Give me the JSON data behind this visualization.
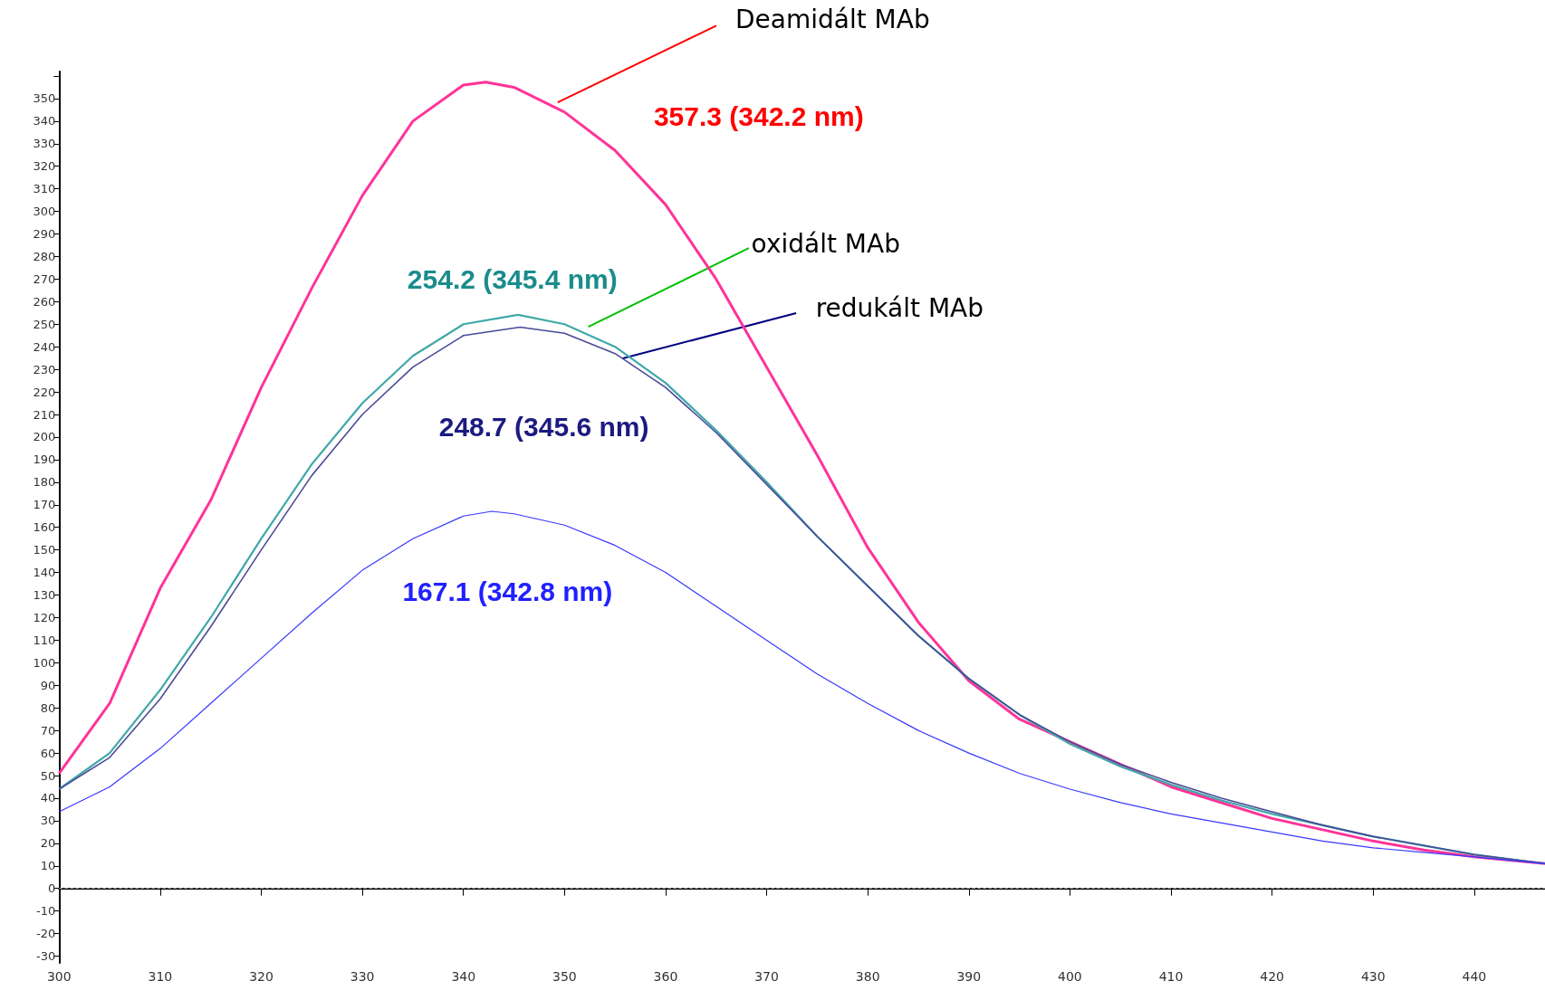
{
  "chart_data": {
    "type": "line",
    "xlim": [
      300,
      447
    ],
    "ylim": [
      -33,
      362
    ],
    "xticks": [
      300,
      310,
      320,
      330,
      340,
      350,
      360,
      370,
      380,
      390,
      400,
      410,
      420,
      430,
      440
    ],
    "yticks": [
      -30,
      -20,
      -10,
      0,
      10,
      20,
      30,
      40,
      50,
      60,
      70,
      80,
      90,
      100,
      110,
      120,
      130,
      140,
      150,
      160,
      170,
      180,
      190,
      200,
      210,
      220,
      230,
      240,
      250,
      260,
      270,
      280,
      290,
      300,
      310,
      320,
      330,
      340,
      350,
      {
        "value": 360,
        "label": null
      }
    ],
    "grid": false,
    "legend": false,
    "marker": "none",
    "line_style": "solid",
    "ref_lines": [
      {
        "axis": "y",
        "value": 0,
        "color": "#a0a0a0",
        "line_style": "dashed"
      }
    ],
    "series": [
      {
        "name": "Deamidált MAb",
        "color": "#ff3399",
        "x": [
          300,
          305,
          310,
          315,
          320,
          325,
          330,
          335,
          340,
          342.2,
          345,
          350,
          355,
          360,
          365,
          370,
          375,
          380,
          385,
          390,
          395,
          400,
          405,
          410,
          415,
          420,
          425,
          430,
          435,
          440,
          447
        ],
        "values": [
          51,
          82,
          133,
          172,
          222,
          266,
          307,
          340,
          356,
          357.3,
          355,
          344,
          327,
          303,
          270,
          231,
          192,
          151,
          118,
          92,
          75,
          65,
          55,
          45,
          38,
          31,
          26,
          21,
          17,
          14,
          11
        ]
      },
      {
        "name": "oxidált MAb",
        "color": "#40a8a8",
        "x": [
          300,
          305,
          310,
          315,
          320,
          325,
          330,
          335,
          340,
          345.4,
          350,
          355,
          360,
          365,
          370,
          375,
          380,
          385,
          390,
          395,
          400,
          405,
          410,
          415,
          420,
          425,
          430,
          435,
          440,
          447
        ],
        "values": [
          44,
          60,
          88,
          120,
          155,
          188,
          215,
          236,
          250,
          254.2,
          250,
          240,
          224,
          203,
          180,
          156,
          134,
          112,
          93,
          77,
          64,
          54,
          46,
          39,
          33,
          28,
          23,
          19,
          15,
          11
        ]
      },
      {
        "name": "redukált MAb",
        "color": "#4a4a98",
        "x": [
          300,
          305,
          310,
          315,
          320,
          325,
          330,
          335,
          340,
          345.6,
          350,
          355,
          360,
          365,
          370,
          375,
          380,
          385,
          390,
          395,
          400,
          405,
          410,
          415,
          420,
          425,
          430,
          435,
          440,
          447
        ],
        "values": [
          44,
          58,
          84,
          116,
          150,
          183,
          210,
          231,
          245,
          248.7,
          246,
          237,
          222,
          202,
          179,
          156,
          134,
          112,
          93,
          77,
          65,
          55,
          47,
          40,
          34,
          28,
          23,
          19,
          15,
          11
        ]
      },
      {
        "color": "#3838ff",
        "x": [
          300,
          305,
          310,
          315,
          320,
          325,
          330,
          335,
          340,
          342.8,
          345,
          350,
          355,
          360,
          365,
          370,
          375,
          380,
          385,
          390,
          395,
          400,
          405,
          410,
          415,
          420,
          425,
          430,
          435,
          440,
          447
        ],
        "values": [
          34,
          45,
          62,
          82,
          102,
          122,
          141,
          155,
          165,
          167.1,
          166,
          161,
          152,
          140,
          125,
          110,
          95,
          82,
          70,
          60,
          51,
          44,
          38,
          33,
          29,
          25,
          21,
          18,
          16,
          14,
          11
        ]
      }
    ],
    "annotations": [
      "357.3 (342.2 nm)",
      "254.2 (345.4 nm)",
      "248.7 (345.6 nm)",
      "167.1 (342.8 nm)"
    ]
  }
}
